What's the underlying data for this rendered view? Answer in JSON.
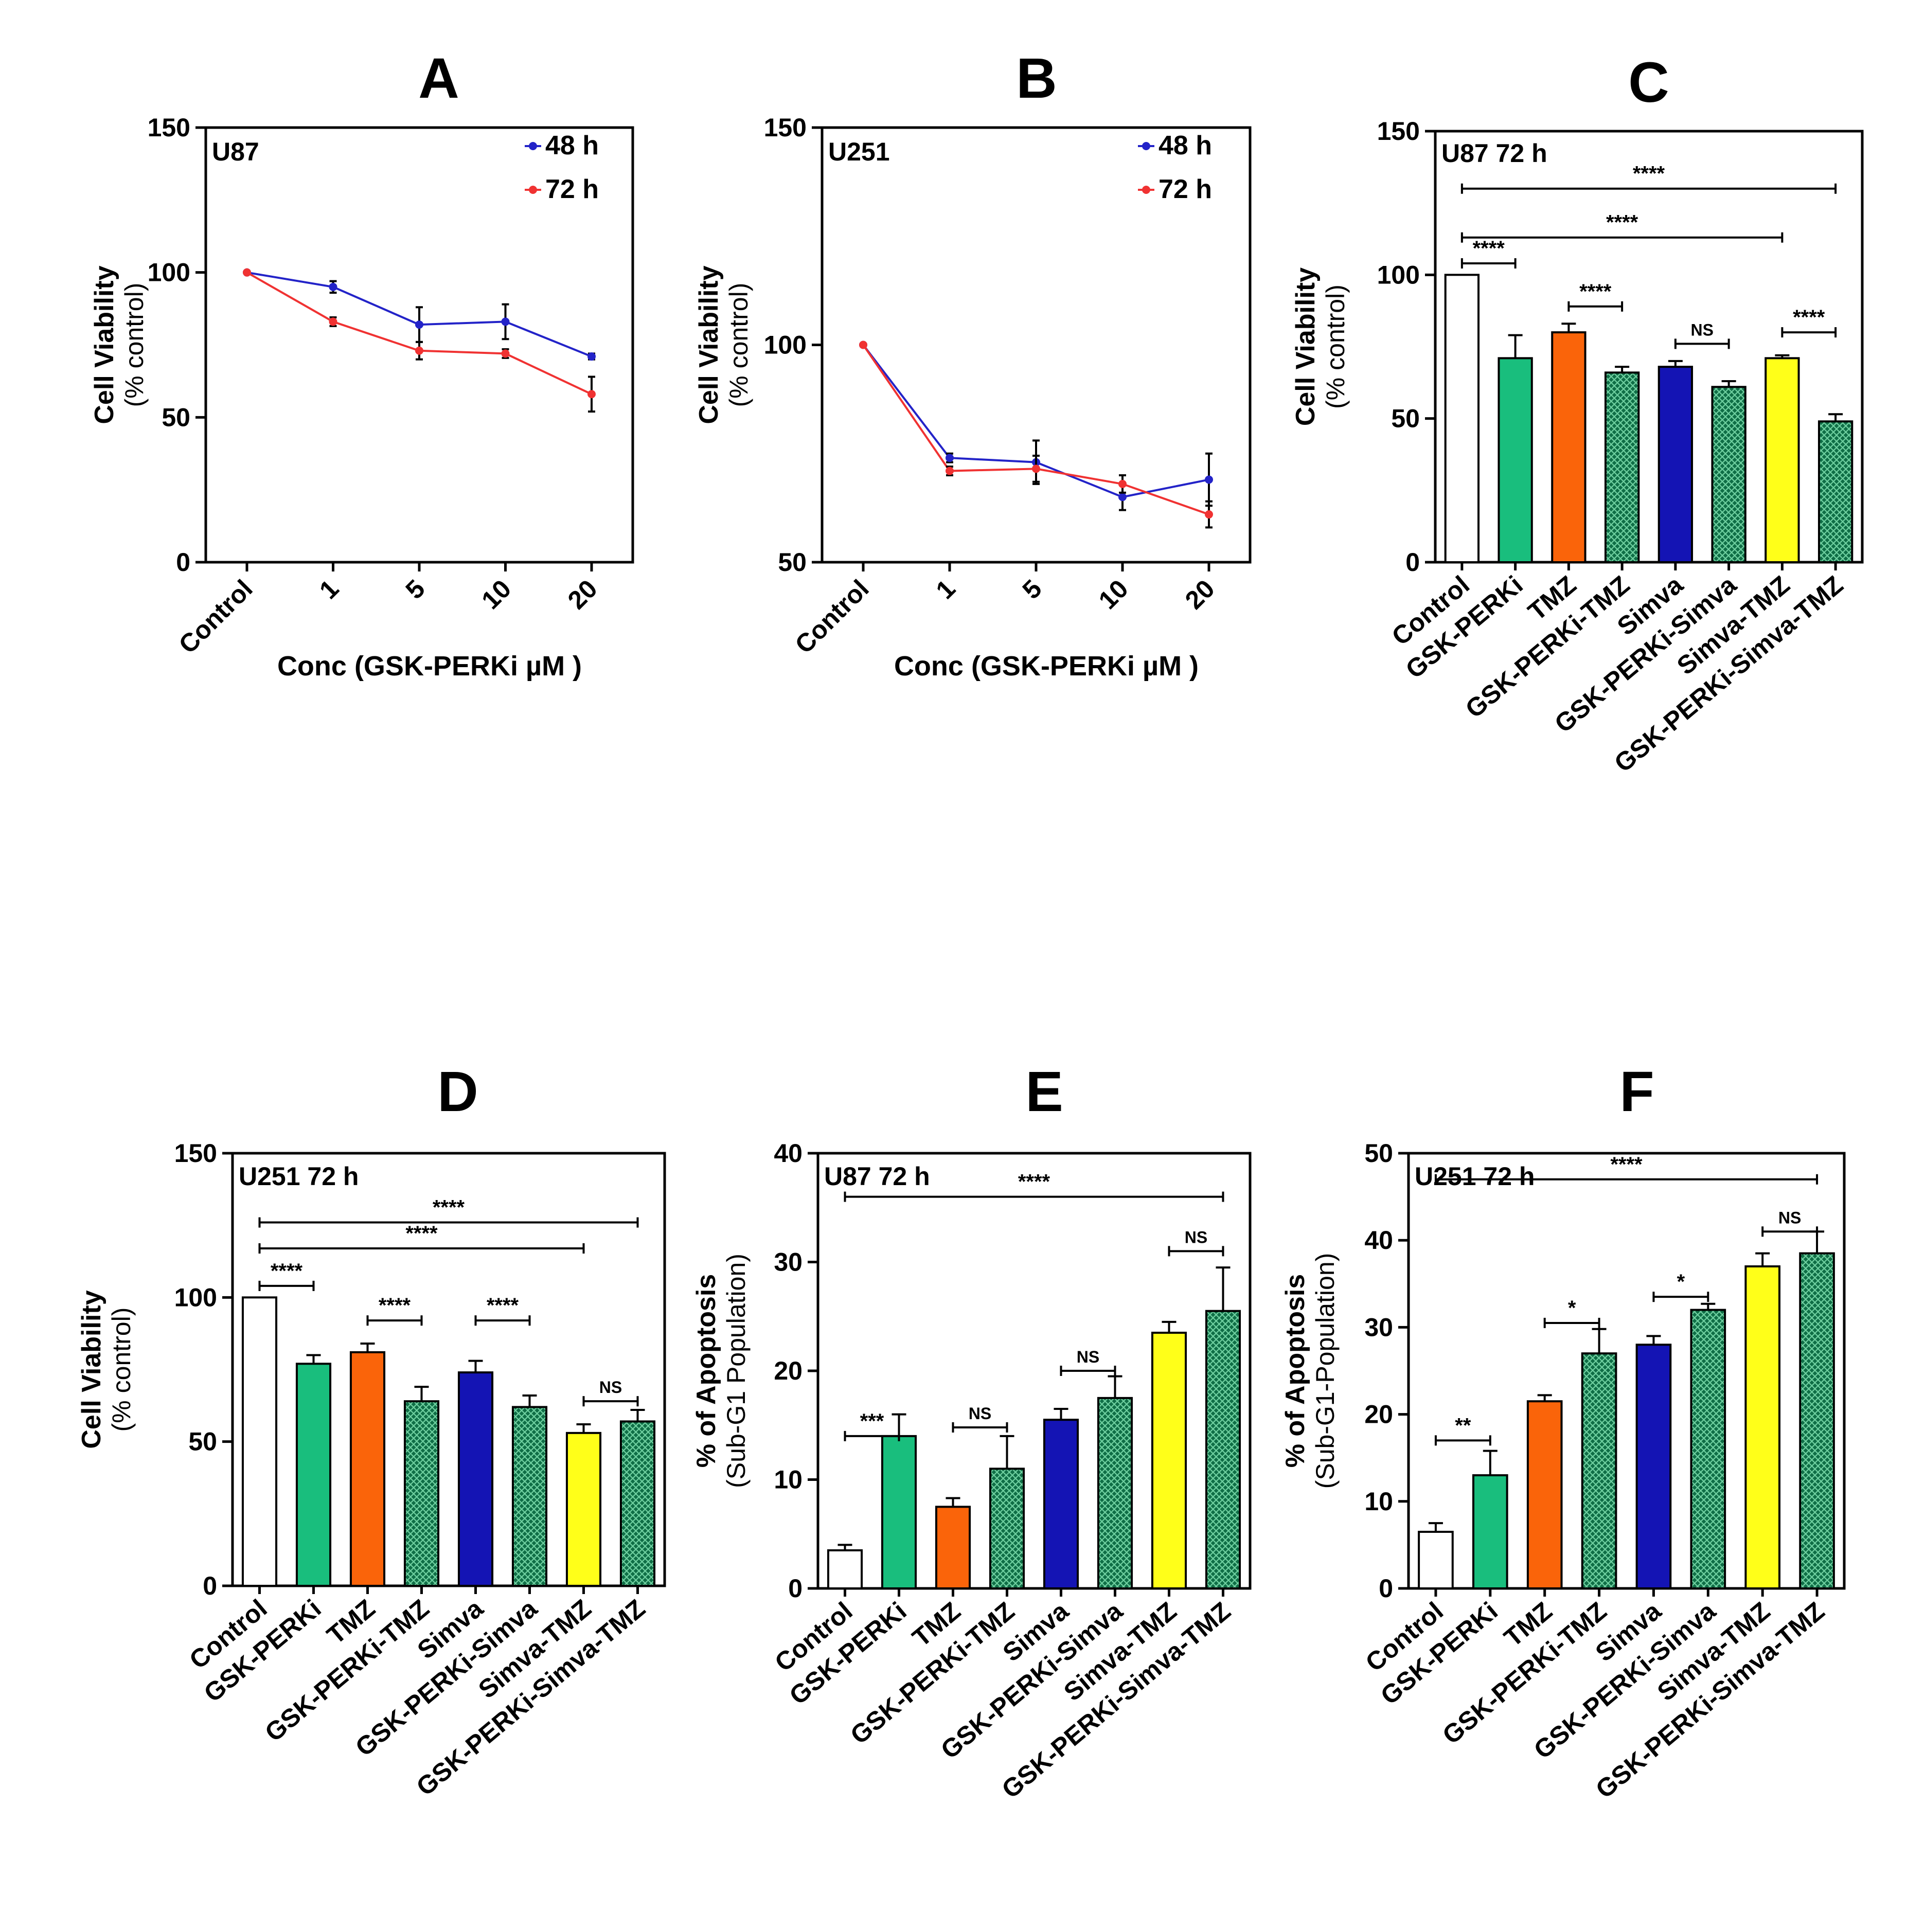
{
  "colors": {
    "series_48h": "#2323c8",
    "series_72h": "#f03232",
    "control": "#ffffff",
    "gsk_perki": "#19be7d",
    "tmz": "#fa640a",
    "combo_hatched": "#0f6e46",
    "simva": "#1414b4",
    "simva_tmz": "#ffff19"
  },
  "chart_data": [
    {
      "id": "A",
      "type": "line",
      "panel_letter": "A",
      "inset_label": "U87",
      "ylabel": "Cell Viability",
      "ylabel2": "(% control)",
      "xlabel": "Conc (GSK-PERKi µM )",
      "categories": [
        "Control",
        "1",
        "5",
        "10",
        "20"
      ],
      "ylim": [
        0,
        150
      ],
      "yticks": [
        "0",
        "50",
        "100",
        "150"
      ],
      "series": [
        {
          "name": "48 h",
          "color_key": "series_48h",
          "values": [
            100,
            95,
            82,
            83,
            71
          ],
          "errors": [
            0,
            2,
            6,
            6,
            1
          ]
        },
        {
          "name": "72 h",
          "color_key": "series_72h",
          "values": [
            100,
            83,
            73,
            72,
            58
          ],
          "errors": [
            0,
            1.5,
            3,
            1.5,
            6
          ]
        }
      ]
    },
    {
      "id": "B",
      "type": "line",
      "panel_letter": "B",
      "inset_label": "U251",
      "ylabel": "Cell Viability",
      "ylabel2": "(% control)",
      "xlabel": "Conc (GSK-PERKi µM )",
      "categories": [
        "Control",
        "1",
        "5",
        "10",
        "20"
      ],
      "ylim": [
        50,
        150
      ],
      "yticks": [
        "50",
        "100",
        "150"
      ],
      "series": [
        {
          "name": "48 h",
          "color_key": "series_48h",
          "values": [
            100,
            74,
            73,
            65,
            69
          ],
          "errors": [
            0,
            1,
            5,
            3,
            6
          ]
        },
        {
          "name": "72 h",
          "color_key": "series_72h",
          "values": [
            100,
            71,
            71.5,
            68,
            61
          ],
          "errors": [
            0,
            1,
            3,
            2,
            3
          ]
        }
      ]
    },
    {
      "id": "C",
      "type": "bar",
      "panel_letter": "C",
      "inset_label": "U87 72 h",
      "ylabel": "Cell Viability",
      "ylabel2": "(% control)",
      "categories": [
        "Control",
        "GSK-PERKi",
        "TMZ",
        "GSK-PERKi-TMZ",
        "Simva",
        "GSK-PERKi-Simva",
        "Simva-TMZ",
        "GSK-PERKi-Simva-TMZ"
      ],
      "ylim": [
        0,
        150
      ],
      "yticks": [
        "0",
        "50",
        "100",
        "150"
      ],
      "values": [
        100,
        71,
        80,
        66,
        68,
        61,
        71,
        49
      ],
      "errors": [
        0,
        8,
        3,
        2,
        2,
        2,
        1,
        2.5
      ],
      "significance": [
        {
          "from": 0,
          "to": 7,
          "label": "****",
          "y": 130
        },
        {
          "from": 0,
          "to": 6,
          "label": "****",
          "y": 113
        },
        {
          "from": 0,
          "to": 1,
          "label": "****",
          "y": 104
        },
        {
          "from": 2,
          "to": 3,
          "label": "****",
          "y": 89
        },
        {
          "from": 4,
          "to": 5,
          "label": "NS",
          "y": 76
        },
        {
          "from": 6,
          "to": 7,
          "label": "****",
          "y": 80
        }
      ]
    },
    {
      "id": "D",
      "type": "bar",
      "panel_letter": "D",
      "inset_label": "U251 72 h",
      "ylabel": "Cell Viability",
      "ylabel2": "(% control)",
      "categories": [
        "Control",
        "GSK-PERKi",
        "TMZ",
        "GSK-PERKi-TMZ",
        "Simva",
        "GSK-PERKi-Simva",
        "Simva-TMZ",
        "GSK-PERKi-Simva-TMZ"
      ],
      "ylim": [
        0,
        150
      ],
      "yticks": [
        "0",
        "50",
        "100",
        "150"
      ],
      "values": [
        100,
        77,
        81,
        64,
        74,
        62,
        53,
        57
      ],
      "errors": [
        0,
        3,
        3,
        5,
        4,
        4,
        3,
        4
      ],
      "significance": [
        {
          "from": 0,
          "to": 7,
          "label": "****",
          "y": 126
        },
        {
          "from": 0,
          "to": 6,
          "label": "****",
          "y": 117
        },
        {
          "from": 0,
          "to": 1,
          "label": "****",
          "y": 104
        },
        {
          "from": 2,
          "to": 3,
          "label": "****",
          "y": 92
        },
        {
          "from": 4,
          "to": 5,
          "label": "****",
          "y": 92
        },
        {
          "from": 6,
          "to": 7,
          "label": "NS",
          "y": 64
        }
      ]
    },
    {
      "id": "E",
      "type": "bar",
      "panel_letter": "E",
      "inset_label": "U87 72 h",
      "ylabel": "% of Apoptosis",
      "ylabel2": "(Sub-G1 Population)",
      "categories": [
        "Control",
        "GSK-PERKi",
        "TMZ",
        "GSK-PERKi-TMZ",
        "Simva",
        "GSK-PERKi-Simva",
        "Simva-TMZ",
        "GSK-PERKi-Simva-TMZ"
      ],
      "ylim": [
        0,
        40
      ],
      "yticks": [
        "0",
        "10",
        "20",
        "30",
        "40"
      ],
      "values": [
        3.5,
        14,
        7.5,
        11,
        15.5,
        17.5,
        23.5,
        25.5
      ],
      "errors": [
        0.5,
        2,
        0.8,
        3,
        1,
        2,
        1,
        4
      ],
      "significance": [
        {
          "from": 0,
          "to": 7,
          "label": "****",
          "y": 36
        },
        {
          "from": 0,
          "to": 1,
          "label": "***",
          "y": 14
        },
        {
          "from": 2,
          "to": 3,
          "label": "NS",
          "y": 14.8
        },
        {
          "from": 4,
          "to": 5,
          "label": "NS",
          "y": 20
        },
        {
          "from": 6,
          "to": 7,
          "label": "NS",
          "y": 31
        }
      ]
    },
    {
      "id": "F",
      "type": "bar",
      "panel_letter": "F",
      "inset_label": "U251 72 h",
      "ylabel": "% of Apoptosis",
      "ylabel2": "(Sub-G1-Population)",
      "categories": [
        "Control",
        "GSK-PERKi",
        "TMZ",
        "GSK-PERKi-TMZ",
        "Simva",
        "GSK-PERKi-Simva",
        "Simva-TMZ",
        "GSK-PERKi-Simva-TMZ"
      ],
      "ylim": [
        0,
        50
      ],
      "yticks": [
        "0",
        "10",
        "20",
        "30",
        "40",
        "50"
      ],
      "values": [
        6.5,
        13,
        21.5,
        27,
        28,
        32,
        37,
        38.5
      ],
      "errors": [
        1,
        2.8,
        0.7,
        2.8,
        1,
        0.7,
        1.5,
        2.5
      ],
      "significance": [
        {
          "from": 0,
          "to": 7,
          "label": "****",
          "y": 47
        },
        {
          "from": 0,
          "to": 1,
          "label": "**",
          "y": 17
        },
        {
          "from": 2,
          "to": 3,
          "label": "*",
          "y": 30.5
        },
        {
          "from": 4,
          "to": 5,
          "label": "*",
          "y": 33.5
        },
        {
          "from": 6,
          "to": 7,
          "label": "NS",
          "y": 41
        }
      ]
    }
  ]
}
